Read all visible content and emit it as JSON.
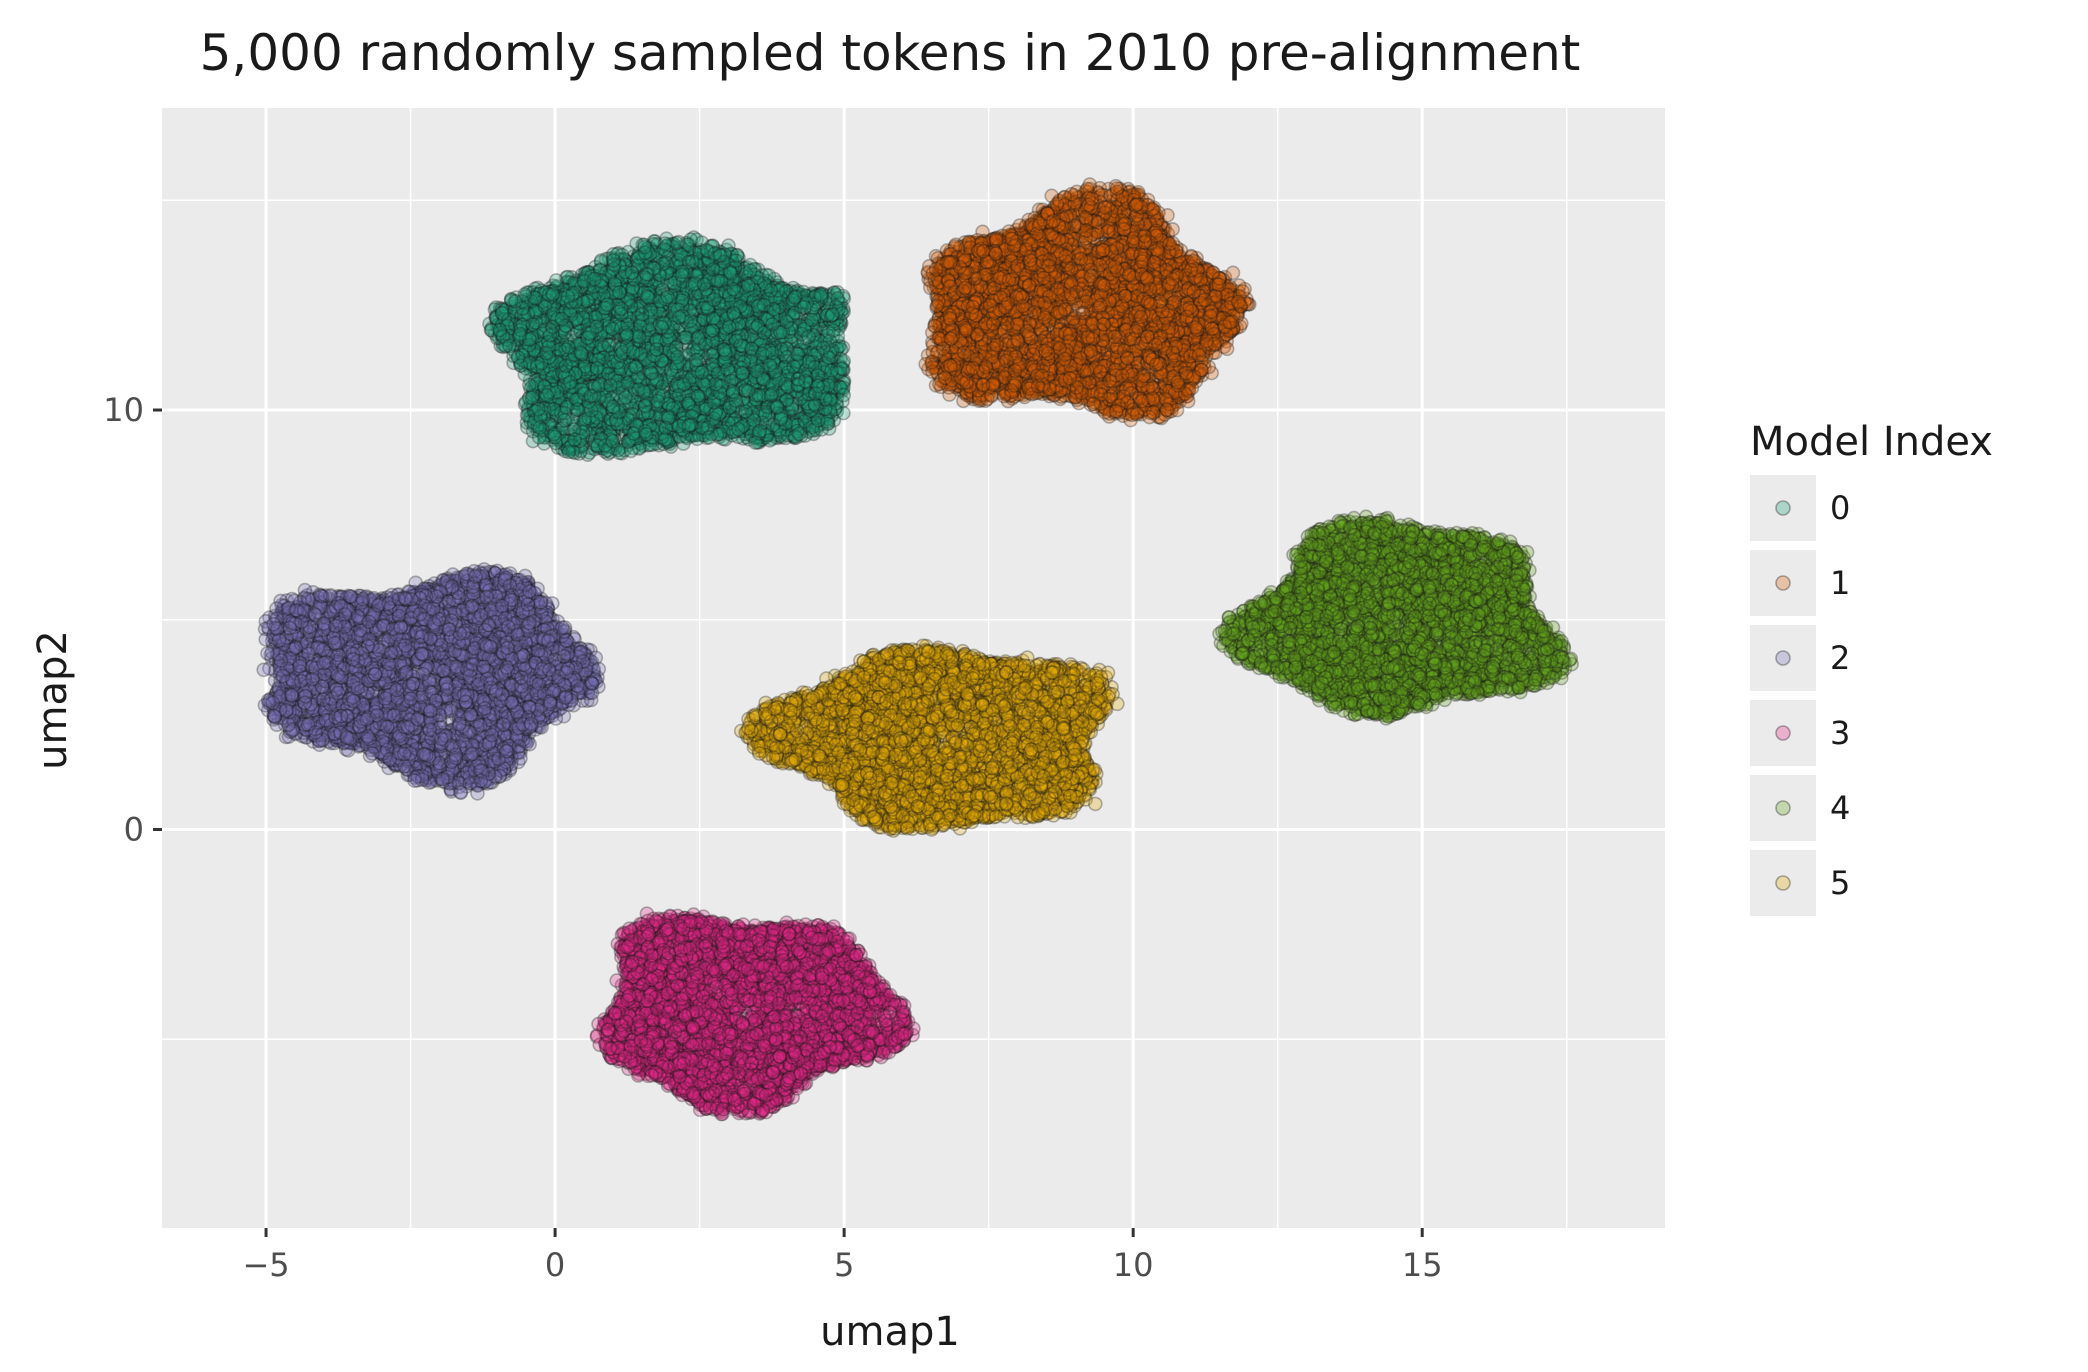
{
  "chart_data": {
    "type": "scatter",
    "title": "5,000 randomly sampled tokens in 2010 pre-alignment",
    "xlabel": "umap1",
    "ylabel": "umap2",
    "xlim": [
      -6.8,
      19.2
    ],
    "ylim": [
      -9.5,
      17.2
    ],
    "x_ticks": [
      -5,
      0,
      5,
      10,
      15
    ],
    "x_tick_labels": [
      "−5",
      "0",
      "5",
      "10",
      "15"
    ],
    "y_ticks": [
      0,
      10
    ],
    "y_tick_labels": [
      "0",
      "10"
    ],
    "grid": true,
    "legend": {
      "title": "Model Index",
      "position": "right"
    },
    "series": [
      {
        "name": "0",
        "color": "#1b9e77",
        "n": 5000,
        "center": [
          2.3,
          11.4
        ],
        "spread": [
          2.4,
          1.7
        ],
        "range_x": [
          -2.3,
          5.0
        ],
        "range_y": [
          7.9,
          14.5
        ]
      },
      {
        "name": "1",
        "color": "#d95f02",
        "n": 5000,
        "center": [
          9.1,
          12.4
        ],
        "spread": [
          1.9,
          1.8
        ],
        "range_x": [
          5.4,
          12.2
        ],
        "range_y": [
          8.7,
          15.9
        ]
      },
      {
        "name": "2",
        "color": "#7570b3",
        "n": 5000,
        "center": [
          -2.2,
          3.7
        ],
        "spread": [
          2.0,
          1.7
        ],
        "range_x": [
          -5.7,
          1.3
        ],
        "range_y": [
          -0.2,
          7.6
        ]
      },
      {
        "name": "3",
        "color": "#e7298a",
        "n": 5000,
        "center": [
          3.3,
          -4.3
        ],
        "spread": [
          1.8,
          1.6
        ],
        "range_x": [
          -0.1,
          7.3
        ],
        "range_y": [
          -8.1,
          -0.9
        ]
      },
      {
        "name": "4",
        "color": "#66a61e",
        "n": 5000,
        "center": [
          14.6,
          5.0
        ],
        "spread": [
          1.9,
          1.6
        ],
        "range_x": [
          11.2,
          18.0
        ],
        "range_y": [
          1.3,
          8.8
        ]
      },
      {
        "name": "5",
        "color": "#e6ab02",
        "n": 5000,
        "center": [
          6.7,
          2.2
        ],
        "spread": [
          2.1,
          1.5
        ],
        "range_x": [
          2.6,
          10.2
        ],
        "range_y": [
          -1.1,
          5.7
        ]
      }
    ],
    "annotations": []
  }
}
